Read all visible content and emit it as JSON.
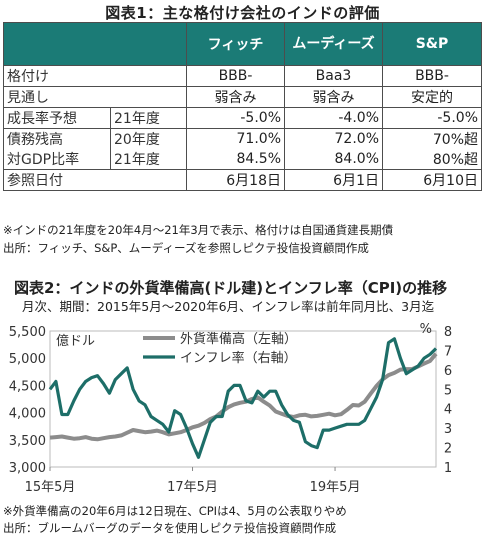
{
  "table_title": "図表1：主な格付け会社のインドの評価",
  "table": {
    "header": [
      "",
      "",
      "フィッチ",
      "ムーディーズ",
      "S&P"
    ],
    "rows": [
      {
        "label": "格付け",
        "year": "",
        "vals": [
          "BBB-",
          "Baa3",
          "BBB-"
        ]
      },
      {
        "label": "見通し",
        "year": "",
        "vals": [
          "弱含み",
          "弱含み",
          "安定的"
        ]
      },
      {
        "label": "成長率予想",
        "year": "21年度",
        "vals": [
          "-5.0%",
          "-4.0%",
          "-5.0%"
        ]
      },
      {
        "label": "債務残高",
        "year": "20年度",
        "vals": [
          "71.0%",
          "72.0%",
          "70%超"
        ]
      },
      {
        "label": "対GDP比率",
        "year": "21年度",
        "vals": [
          "84.5%",
          "84.0%",
          "80%超"
        ]
      },
      {
        "label": "参照日付",
        "year": "",
        "vals": [
          "6月18日",
          "6月1日",
          "6月10日"
        ]
      }
    ],
    "note1": "※インドの21年度を20年4月～21年3月で表示、格付けは自国通貨建長期債",
    "note2": "出所：フィッチ、S&P、ムーディーズを参照しピクテ投信投資顧問作成"
  },
  "chart_title": "図表2：インドの外貨準備高(ドル建)とインフレ率（CPI)の推移",
  "chart_subtitle": "月次、期間：2015年5月～2020年6月、インフレ率は前年同月比、3月迄",
  "chart_note1": "※外貨準備高の20年6月は12日現在、CPIは4、5月の公表取りやめ",
  "chart_note2": "出所：ブルームバーグのデータを使用しピクテ投信投資顧問作成",
  "colors": {
    "header_bg": "#1b7b76",
    "reserves": "#8c8c8c",
    "inflation": "#1d6e68"
  },
  "chart_data": {
    "type": "line",
    "left_unit": "億ドル",
    "right_unit": "%",
    "ylim_left": [
      3000,
      5500
    ],
    "ylim_right": [
      1,
      8
    ],
    "left_ticks": [
      "3,000",
      "3,500",
      "4,000",
      "4,500",
      "5,000",
      "5,500"
    ],
    "right_ticks": [
      "1",
      "2",
      "3",
      "4",
      "5",
      "6",
      "7",
      "8"
    ],
    "x_tick_labels": [
      "15年5月",
      "17年5月",
      "19年5月"
    ],
    "legend": [
      "外貨準備高（左軸）",
      "インフレ率（右軸）"
    ],
    "series": [
      {
        "name": "外貨準備高（左軸）",
        "axis": "left",
        "start": "2015-05",
        "values": [
          3540,
          3550,
          3560,
          3540,
          3520,
          3530,
          3550,
          3520,
          3510,
          3530,
          3550,
          3560,
          3580,
          3630,
          3680,
          3660,
          3640,
          3650,
          3670,
          3640,
          3600,
          3620,
          3640,
          3680,
          3730,
          3760,
          3810,
          3880,
          3930,
          4020,
          4100,
          4150,
          4180,
          4200,
          4250,
          4280,
          4200,
          4130,
          4020,
          3980,
          3940,
          3920,
          3950,
          3960,
          3930,
          3940,
          3960,
          3980,
          3950,
          3970,
          4050,
          4140,
          4130,
          4200,
          4350,
          4490,
          4610,
          4690,
          4730,
          4790,
          4800,
          4800,
          4850,
          4900,
          4950,
          5080
        ]
      },
      {
        "name": "インフレ率（右軸）",
        "axis": "right",
        "start": "2015-05",
        "values": [
          5.0,
          5.4,
          3.7,
          3.7,
          4.4,
          5.0,
          5.4,
          5.6,
          5.7,
          5.3,
          4.8,
          5.5,
          5.8,
          6.1,
          5.0,
          4.4,
          4.2,
          3.6,
          3.4,
          3.2,
          2.8,
          3.9,
          3.7,
          3.0,
          2.2,
          1.5,
          2.4,
          3.3,
          3.6,
          3.6,
          4.9,
          5.2,
          5.2,
          4.4,
          4.3,
          4.9,
          4.6,
          4.9,
          4.9,
          4.2,
          3.7,
          3.4,
          3.3,
          2.3,
          2.1,
          2.0,
          2.9,
          2.9,
          3.0,
          3.1,
          3.2,
          3.2,
          3.2,
          3.4,
          4.0,
          4.6,
          5.5,
          7.4,
          7.6,
          6.6,
          5.8,
          6.0,
          6.2,
          6.6,
          6.8,
          7.1
        ]
      }
    ]
  }
}
